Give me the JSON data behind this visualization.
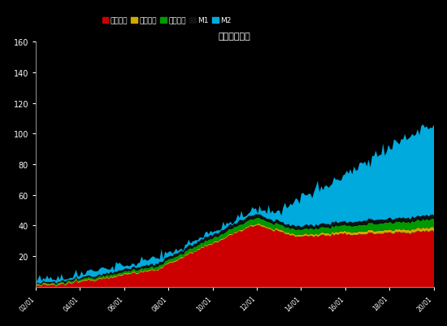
{
  "title": "单位：万亿元",
  "background_color": "#000000",
  "text_color": "#ffffff",
  "series_colors": [
    "#cc0000",
    "#ccaa00",
    "#009900",
    "#111111",
    "#00aadd"
  ],
  "series_labels": [
    "企业存款",
    "财政存款",
    "居民存款",
    "M1",
    "M2"
  ],
  "n_points": 220,
  "ylim": [
    0,
    160
  ],
  "yticks": [
    20,
    40,
    60,
    80,
    100,
    120,
    140,
    160
  ],
  "figsize": [
    5.5,
    4.02
  ],
  "dpi": 100
}
